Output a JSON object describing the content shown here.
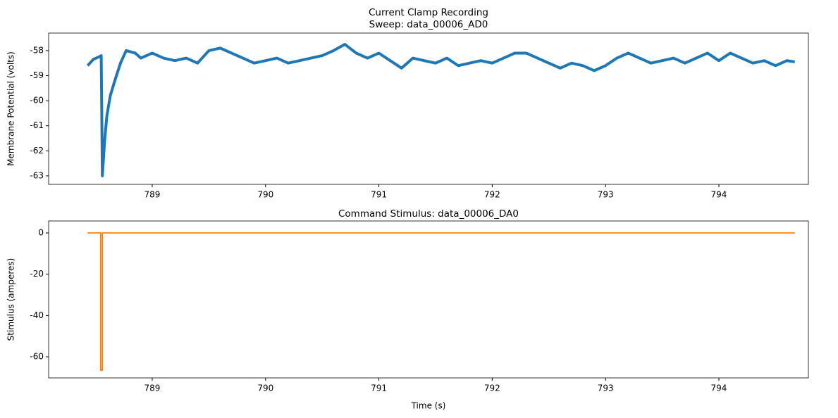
{
  "chart_data": [
    {
      "type": "line",
      "title": "Current Clamp Recording",
      "subtitle": "Sweep: data_00006_AD0",
      "ylabel": "Membrane Potential (volts)",
      "x": [
        788.43,
        788.48,
        788.53,
        788.55,
        788.56,
        788.58,
        788.6,
        788.63,
        788.67,
        788.72,
        788.77,
        788.85,
        788.9,
        789.0,
        789.1,
        789.2,
        789.3,
        789.4,
        789.5,
        789.6,
        789.7,
        789.8,
        789.9,
        790.0,
        790.1,
        790.2,
        790.3,
        790.4,
        790.5,
        790.6,
        790.7,
        790.8,
        790.9,
        791.0,
        791.1,
        791.2,
        791.3,
        791.4,
        791.5,
        791.6,
        791.7,
        791.8,
        791.9,
        792.0,
        792.1,
        792.2,
        792.3,
        792.4,
        792.5,
        792.6,
        792.7,
        792.8,
        792.9,
        793.0,
        793.1,
        793.2,
        793.3,
        793.4,
        793.5,
        793.6,
        793.7,
        793.8,
        793.9,
        794.0,
        794.1,
        794.2,
        794.3,
        794.4,
        794.5,
        794.6,
        794.67
      ],
      "series": [
        {
          "color": "#1f77b4",
          "values": [
            -58.6,
            -58.35,
            -58.25,
            -58.2,
            -63.0,
            -61.6,
            -60.6,
            -59.8,
            -59.2,
            -58.5,
            -58.0,
            -58.1,
            -58.3,
            -58.1,
            -58.3,
            -58.4,
            -58.3,
            -58.5,
            -58.0,
            -57.9,
            -58.1,
            -58.3,
            -58.5,
            -58.4,
            -58.3,
            -58.5,
            -58.4,
            -58.3,
            -58.2,
            -58.0,
            -57.75,
            -58.1,
            -58.3,
            -58.1,
            -58.4,
            -58.7,
            -58.3,
            -58.4,
            -58.5,
            -58.3,
            -58.6,
            -58.5,
            -58.4,
            -58.5,
            -58.3,
            -58.1,
            -58.1,
            -58.3,
            -58.5,
            -58.7,
            -58.5,
            -58.6,
            -58.8,
            -58.6,
            -58.3,
            -58.1,
            -58.3,
            -58.5,
            -58.4,
            -58.3,
            -58.5,
            -58.3,
            -58.1,
            -58.4,
            -58.1,
            -58.3,
            -58.5,
            -58.4,
            -58.6,
            -58.4,
            -58.45
          ]
        }
      ],
      "xlim": [
        788.086,
        794.79
      ],
      "xticks": [
        789,
        790,
        791,
        792,
        793,
        794
      ],
      "ylim": [
        -63.34,
        -57.3
      ],
      "yticks": [
        -63,
        -62,
        -61,
        -60,
        -59,
        -58
      ]
    },
    {
      "type": "line",
      "title": "Command Stimulus: data_00006_DA0",
      "xlabel": "Time (s)",
      "ylabel": "Stimulus (amperes)",
      "x": [
        788.43,
        788.545,
        788.545,
        788.56,
        788.56,
        794.67
      ],
      "series": [
        {
          "color": "#ff7f0e",
          "values": [
            0,
            0,
            -66.5,
            -66.5,
            0,
            0
          ]
        }
      ],
      "xlim": [
        788.086,
        794.79
      ],
      "xticks": [
        789,
        790,
        791,
        792,
        793,
        794
      ],
      "ylim": [
        -70.2,
        5.8
      ],
      "yticks": [
        -60,
        -40,
        -20,
        0
      ]
    }
  ]
}
